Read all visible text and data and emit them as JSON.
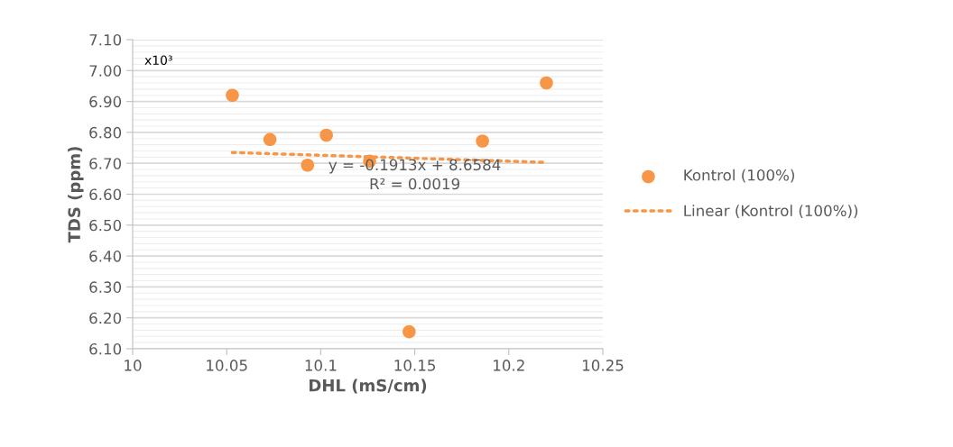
{
  "chart_data": {
    "type": "scatter",
    "xlabel": "DHL (mS/cm)",
    "ylabel": "TDS (ppm)",
    "xlim": [
      10,
      10.25
    ],
    "xticks": [
      10,
      10.05,
      10.1,
      10.15,
      10.2,
      10.25
    ],
    "ylim": [
      6.1,
      7.1
    ],
    "yticks": [
      {
        "value": 6.1,
        "label": "6.10"
      },
      {
        "value": 6.2,
        "label": "6.20"
      },
      {
        "value": 6.3,
        "label": "6.30"
      },
      {
        "value": 6.4,
        "label": "6.40"
      },
      {
        "value": 6.5,
        "label": "6.50"
      },
      {
        "value": 6.6,
        "label": "6.60"
      },
      {
        "value": 6.7,
        "label": "6.70"
      },
      {
        "value": 6.8,
        "label": "6.80"
      },
      {
        "value": 6.9,
        "label": "6.90"
      },
      {
        "value": 7.0,
        "label": "7.00"
      },
      {
        "value": 7.1,
        "label": "7.10"
      }
    ],
    "series": [
      {
        "name": "Kontrol (100%)",
        "color": "#f79646",
        "marker": "circle",
        "x": [
          10.053,
          10.073,
          10.093,
          10.103,
          10.126,
          10.147,
          10.186,
          10.22
        ],
        "values": [
          6.92,
          6.777,
          6.694,
          6.791,
          6.707,
          6.155,
          6.772,
          6.96
        ]
      },
      {
        "name": "Linear (Kontrol (100%))",
        "type": "line",
        "color": "#f79646",
        "marker": "none",
        "line_style": "dotted",
        "x": [
          10.053,
          10.22
        ],
        "values": [
          6.735,
          6.703
        ]
      }
    ],
    "annotations": [
      "x10³",
      "y = -0.1913x + 8.6584\nR² = 0.0019"
    ],
    "grid": "y",
    "legend": "right"
  }
}
